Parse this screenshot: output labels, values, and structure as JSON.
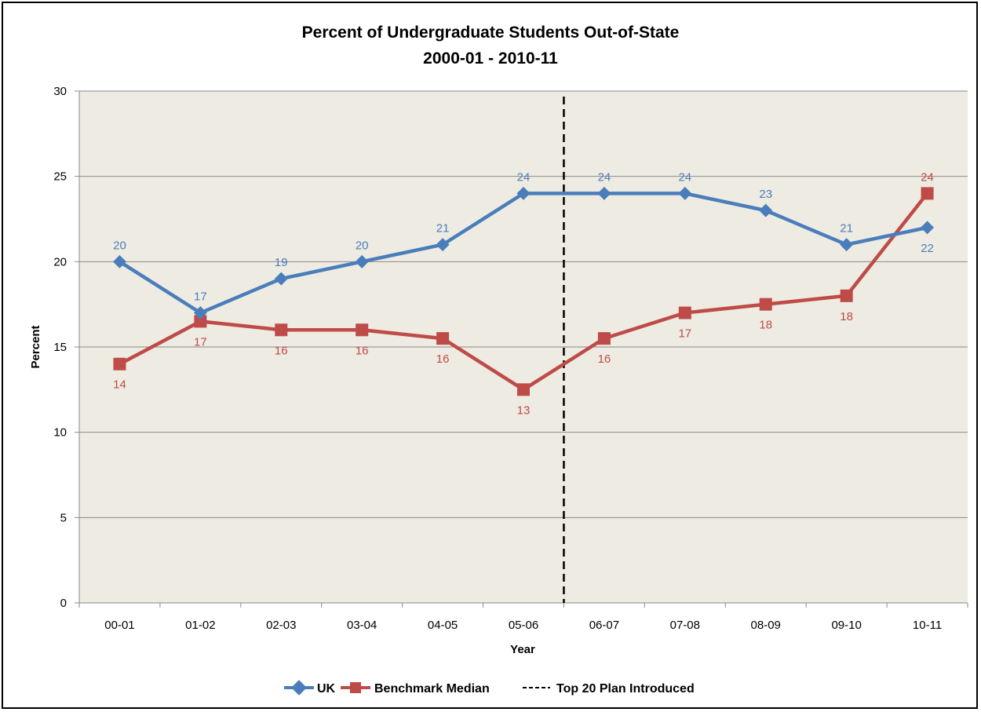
{
  "chart_data": {
    "type": "line",
    "title": "Percent of Undergraduate Students Out-of-State",
    "subtitle": "2000-01 - 2010-11",
    "xlabel": "Year",
    "ylabel": "Percent",
    "ylim": [
      0,
      30
    ],
    "yticks": [
      "0",
      "5",
      "10",
      "15",
      "20",
      "25",
      "30"
    ],
    "categories": [
      "00-01",
      "01-02",
      "02-03",
      "03-04",
      "04-05",
      "05-06",
      "06-07",
      "07-08",
      "08-09",
      "09-10",
      "10-11"
    ],
    "grid": true,
    "legend_position": "bottom",
    "series": [
      {
        "name": "UK",
        "color": "#4a7ebb",
        "marker": "diamond",
        "values": [
          20,
          17,
          19,
          20,
          21,
          24,
          24,
          24,
          23,
          21,
          22
        ],
        "labels": [
          "20",
          "17",
          "19",
          "20",
          "21",
          "24",
          "24",
          "24",
          "23",
          "21",
          "22"
        ]
      },
      {
        "name": "Benchmark Median",
        "color": "#be4b48",
        "marker": "square",
        "values": [
          14,
          16.5,
          16,
          16,
          15.5,
          12.5,
          15.5,
          17,
          17.5,
          18,
          24
        ],
        "labels": [
          "14",
          "17",
          "16",
          "16",
          "16",
          "13",
          "16",
          "17",
          "18",
          "18",
          "24"
        ]
      }
    ],
    "annotation": {
      "name": "Top 20 Plan Introduced",
      "type": "vertical-dashed-line",
      "between": [
        "05-06",
        "06-07"
      ]
    }
  }
}
